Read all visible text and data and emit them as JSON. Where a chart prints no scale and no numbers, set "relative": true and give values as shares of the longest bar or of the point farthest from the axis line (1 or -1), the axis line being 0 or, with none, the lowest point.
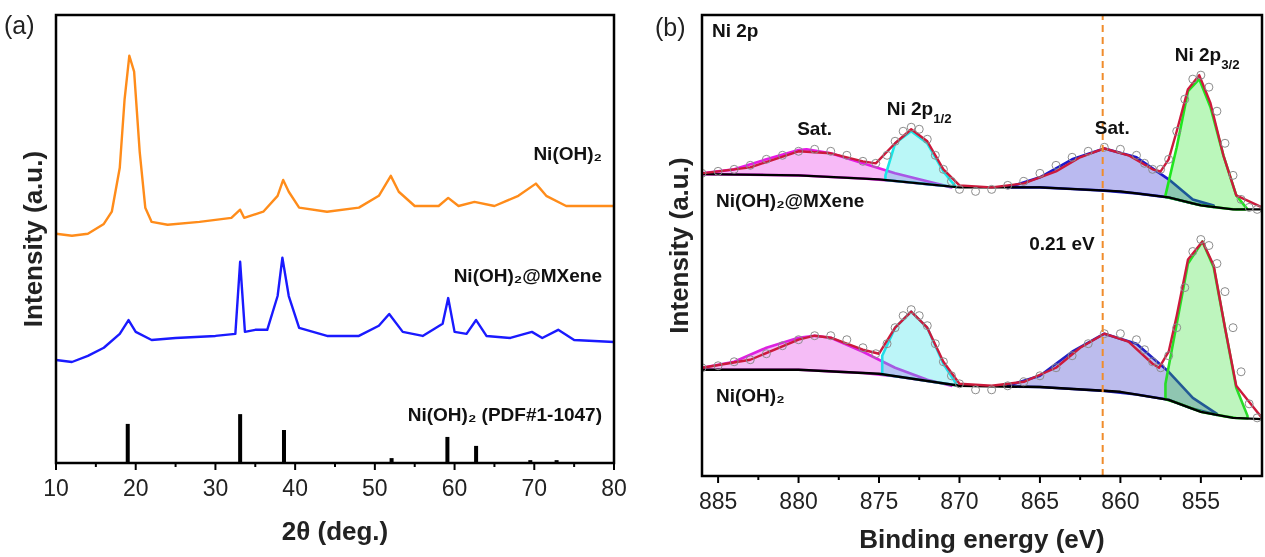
{
  "chart_data": [
    {
      "type": "line",
      "title": "(a)",
      "xlabel": "2θ (deg.)",
      "ylabel": "Intensity (a.u.)",
      "relative": true,
      "tick_labels": "x",
      "xlim": [
        10,
        80
      ],
      "xticks": [
        10,
        {
          "value": 15,
          "label": null
        },
        20,
        {
          "value": 25,
          "label": null
        },
        30,
        {
          "value": 35,
          "label": null
        },
        40,
        {
          "value": 45,
          "label": null
        },
        50,
        {
          "value": 55,
          "label": null
        },
        60,
        {
          "value": 65,
          "label": null
        },
        70,
        {
          "value": 75,
          "label": null
        },
        80
      ],
      "series": [
        {
          "name": "Ni(OH)₂",
          "color": "#ff8c1a",
          "x": [
            10,
            12,
            14,
            16,
            17,
            18,
            18.6,
            19.2,
            19.8,
            20.5,
            21.2,
            22,
            24,
            28,
            32,
            33.1,
            33.6,
            36,
            37.8,
            38.5,
            39.2,
            40.5,
            44,
            48,
            50.5,
            52,
            53,
            55,
            58,
            59.2,
            60.5,
            62.5,
            65,
            68,
            70.2,
            71.5,
            74,
            77,
            80
          ],
          "values": [
            0.563,
            0.558,
            0.563,
            0.587,
            0.617,
            0.725,
            0.892,
            1,
            0.961,
            0.764,
            0.627,
            0.592,
            0.585,
            0.592,
            0.602,
            0.622,
            0.602,
            0.617,
            0.656,
            0.695,
            0.666,
            0.627,
            0.617,
            0.627,
            0.656,
            0.705,
            0.666,
            0.631,
            0.631,
            0.651,
            0.631,
            0.641,
            0.631,
            0.656,
            0.686,
            0.656,
            0.631,
            0.631,
            0.631
          ]
        },
        {
          "name": "Ni(OH)₂@MXene",
          "color": "#1a1aff",
          "x": [
            10,
            12,
            14,
            16,
            18,
            19.1,
            20,
            22,
            25,
            30,
            32.5,
            33.1,
            33.7,
            35,
            36.5,
            37.8,
            38.4,
            39.2,
            40.5,
            44,
            48,
            50.5,
            51.8,
            53.5,
            56,
            58.5,
            59.2,
            60,
            61.5,
            62.7,
            64,
            67,
            69.7,
            71,
            73,
            75,
            80
          ],
          "values": [
            0.253,
            0.248,
            0.263,
            0.283,
            0.317,
            0.351,
            0.322,
            0.302,
            0.307,
            0.312,
            0.317,
            0.494,
            0.322,
            0.327,
            0.327,
            0.41,
            0.504,
            0.41,
            0.332,
            0.312,
            0.312,
            0.337,
            0.366,
            0.322,
            0.312,
            0.342,
            0.405,
            0.322,
            0.317,
            0.351,
            0.312,
            0.307,
            0.322,
            0.307,
            0.327,
            0.302,
            0.297
          ]
        },
        {
          "name": "Ni(OH)₂ (PDF#1-1047)",
          "type": "bar",
          "color": "#000000",
          "x": [
            19.0,
            33.1,
            38.6,
            52.1,
            59.1,
            62.7,
            69.5,
            72.8
          ],
          "values": [
            0.096,
            0.12,
            0.081,
            0.012,
            0.064,
            0.042,
            0.007,
            0.007
          ]
        }
      ]
    },
    {
      "type": "area",
      "title": "(b)",
      "xlabel": "Binding energy (eV)",
      "ylabel": "Intensity (a.u.)",
      "relative": true,
      "tick_labels": "x",
      "xlim": [
        886,
        851.2
      ],
      "xticks": [
        885,
        {
          "value": 882.5,
          "label": null
        },
        880,
        {
          "value": 877.5,
          "label": null
        },
        875,
        {
          "value": 872.5,
          "label": null
        },
        870,
        {
          "value": 867.5,
          "label": null
        },
        865,
        {
          "value": 862.5,
          "label": null
        },
        860,
        {
          "value": 857.5,
          "label": null
        },
        855,
        {
          "value": 852.5,
          "label": null
        }
      ],
      "annotations": [
        "Ni 2p",
        {
          "text": "Sat.",
          "x": 879.5,
          "y": 0.815
        },
        {
          "text": "Ni 2p$_{1/2}$",
          "x": 873,
          "y": 0.865
        },
        {
          "text": "Sat.",
          "x": 861,
          "y": 0.817
        },
        {
          "text": "Ni 2p$_{3/2}$",
          "x": 855.1,
          "y": 1
        }
      ],
      "ref_lines": [
        {
          "axis": "x",
          "value": 861.1,
          "label": "0.21 eV",
          "color": "#f08c2c",
          "line_style": "dashed"
        }
      ],
      "series": [
        {
          "type": "line",
          "color": "#000000",
          "x": [
            886,
            880,
            875,
            870,
            865,
            860,
            857,
            855,
            853,
            851.2
          ],
          "values": [
            0.753,
            0.75,
            0.74,
            0.72,
            0.72,
            0.71,
            0.695,
            0.675,
            0.665,
            0.665
          ]
        },
        {
          "color": "#e619e6",
          "x": [
            886,
            884,
            882,
            880,
            879.5,
            878,
            876,
            874,
            872,
            870.5
          ],
          "values": [
            0.755,
            0.765,
            0.79,
            0.813,
            0.815,
            0.805,
            0.78,
            0.755,
            0.735,
            0.72
          ]
        },
        {
          "color": "#19e6e6",
          "x": [
            874.6,
            874,
            873,
            872,
            871,
            870.2
          ],
          "values": [
            0.75,
            0.83,
            0.86,
            0.83,
            0.76,
            0.72
          ]
        },
        {
          "color": "#1a1acc",
          "x": [
            867,
            865,
            863,
            861,
            859,
            857,
            855.5,
            854.2
          ],
          "values": [
            0.72,
            0.745,
            0.79,
            0.817,
            0.795,
            0.74,
            0.69,
            0.675
          ]
        },
        {
          "color": "#1ee61e",
          "x": [
            857.2,
            856.5,
            855.8,
            855.1,
            854.4,
            853.6,
            852.8,
            852.1
          ],
          "values": [
            0.7,
            0.82,
            0.96,
            0.99,
            0.92,
            0.8,
            0.7,
            0.665
          ]
        },
        {
          "type": "line",
          "color": "#cc1a3c",
          "x": [
            886,
            883,
            880,
            878,
            876,
            875.2,
            874,
            873,
            872,
            871,
            870,
            868,
            866,
            864,
            862.5,
            861,
            859.5,
            858,
            857.5,
            857,
            856.5,
            855.8,
            855.1,
            854.4,
            853.6,
            852.8,
            851.2
          ],
          "values": [
            0.755,
            0.77,
            0.81,
            0.805,
            0.785,
            0.78,
            0.83,
            0.865,
            0.835,
            0.765,
            0.725,
            0.72,
            0.73,
            0.76,
            0.795,
            0.817,
            0.8,
            0.765,
            0.76,
            0.79,
            0.86,
            0.965,
            1,
            0.93,
            0.8,
            0.7,
            0.67
          ]
        },
        {
          "name": "Ni(OH)₂@MXene",
          "type": "scatter",
          "marker": "circle",
          "color": "#8c8c8c",
          "x": [
            886,
            885,
            884,
            883,
            882,
            881,
            880,
            879,
            878,
            877,
            876,
            875.2,
            874.5,
            874,
            873.5,
            873,
            872.5,
            872,
            871.5,
            871,
            870.5,
            870,
            869,
            868,
            867,
            866,
            865,
            864,
            863,
            862,
            861,
            860,
            859,
            858.5,
            858,
            857.5,
            857,
            856.5,
            856,
            855.5,
            855,
            854.5,
            854,
            853.5,
            853,
            852.5,
            852,
            851.5
          ],
          "values": [
            0.755,
            0.76,
            0.765,
            0.775,
            0.79,
            0.8,
            0.81,
            0.815,
            0.81,
            0.8,
            0.785,
            0.78,
            0.8,
            0.835,
            0.86,
            0.87,
            0.865,
            0.84,
            0.8,
            0.765,
            0.735,
            0.715,
            0.71,
            0.715,
            0.725,
            0.735,
            0.755,
            0.775,
            0.795,
            0.81,
            0.82,
            0.815,
            0.8,
            0.78,
            0.765,
            0.765,
            0.79,
            0.86,
            0.94,
            0.99,
            1,
            0.97,
            0.91,
            0.83,
            0.75,
            0.69,
            0.67,
            0.665
          ]
        },
        {
          "type": "line",
          "color": "#000000",
          "x": [
            886,
            880,
            875,
            870,
            865,
            860,
            857,
            855,
            853,
            851.2
          ],
          "values": [
            0.265,
            0.265,
            0.255,
            0.225,
            0.222,
            0.21,
            0.19,
            0.16,
            0.145,
            0.142
          ]
        },
        {
          "color": "#dd22e0",
          "x": [
            886,
            884,
            882,
            880,
            879,
            878,
            876,
            874,
            872,
            870.5
          ],
          "values": [
            0.27,
            0.285,
            0.32,
            0.345,
            0.35,
            0.345,
            0.31,
            0.27,
            0.24,
            0.225
          ]
        },
        {
          "color": "#22dde8",
          "x": [
            874.8,
            874,
            873,
            872,
            871,
            870.2
          ],
          "values": [
            0.3,
            0.37,
            0.41,
            0.37,
            0.28,
            0.23
          ]
        },
        {
          "color": "#2222c4",
          "x": [
            867,
            865,
            863,
            861,
            859,
            857,
            855.5,
            854
          ],
          "values": [
            0.225,
            0.25,
            0.31,
            0.355,
            0.33,
            0.26,
            0.195,
            0.155
          ]
        },
        {
          "color": "#28dd28",
          "x": [
            857.2,
            856.5,
            855.8,
            854.9,
            854.2,
            853.5,
            852.8,
            852.1
          ],
          "values": [
            0.23,
            0.38,
            0.53,
            0.585,
            0.52,
            0.37,
            0.22,
            0.15
          ]
        },
        {
          "type": "line",
          "color": "#cc1a3c",
          "x": [
            886,
            883,
            880,
            879,
            878,
            876,
            875,
            874,
            873,
            872,
            871,
            870,
            868,
            866,
            864,
            862.5,
            861,
            859.5,
            858,
            857.6,
            857,
            856.5,
            855.8,
            854.9,
            854.2,
            853.5,
            852.8,
            851.2
          ],
          "values": [
            0.27,
            0.29,
            0.34,
            0.35,
            0.345,
            0.315,
            0.305,
            0.37,
            0.41,
            0.37,
            0.285,
            0.23,
            0.225,
            0.235,
            0.27,
            0.32,
            0.355,
            0.335,
            0.28,
            0.27,
            0.31,
            0.4,
            0.54,
            0.585,
            0.525,
            0.37,
            0.225,
            0.145
          ]
        },
        {
          "name": "Ni(OH)₂",
          "type": "scatter",
          "marker": "circle",
          "color": "#8c8c8c",
          "x": [
            886,
            885,
            884,
            883,
            882,
            881,
            880,
            879,
            878,
            877,
            876,
            875.2,
            874.5,
            874,
            873.5,
            873,
            872.5,
            872,
            871.5,
            871,
            870.5,
            870,
            869,
            868,
            867,
            866,
            865,
            864,
            863,
            862,
            861,
            860,
            859,
            858.5,
            858,
            857.5,
            857,
            856.5,
            856,
            855.5,
            855,
            854.5,
            854,
            853.5,
            853,
            852.5,
            852,
            851.5
          ],
          "values": [
            0.27,
            0.275,
            0.285,
            0.29,
            0.305,
            0.325,
            0.34,
            0.35,
            0.35,
            0.34,
            0.32,
            0.305,
            0.33,
            0.37,
            0.4,
            0.415,
            0.4,
            0.375,
            0.33,
            0.285,
            0.25,
            0.23,
            0.215,
            0.215,
            0.225,
            0.235,
            0.25,
            0.27,
            0.3,
            0.33,
            0.355,
            0.355,
            0.34,
            0.315,
            0.285,
            0.27,
            0.3,
            0.37,
            0.47,
            0.56,
            0.59,
            0.575,
            0.53,
            0.46,
            0.37,
            0.26,
            0.18,
            0.145
          ]
        }
      ]
    }
  ]
}
